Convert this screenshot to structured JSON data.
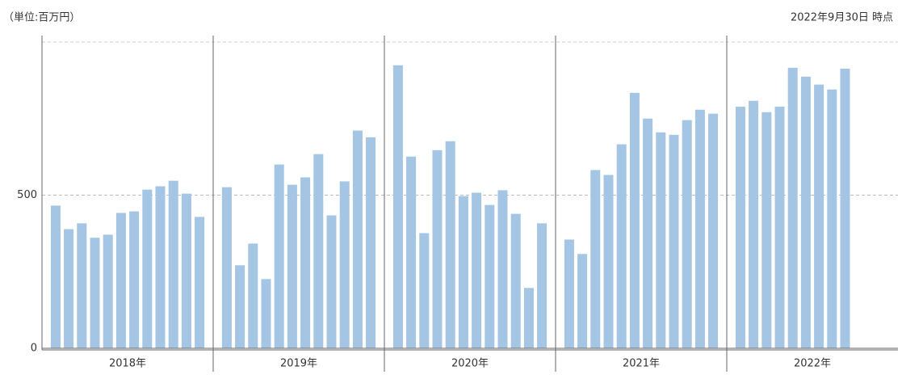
{
  "chart_data": {
    "type": "grouped-bar",
    "unit_note": "（単位:百万円）",
    "as_of": "2022年9月30日 時点",
    "color": "#a4c5e4",
    "ylim": [
      0,
      1000
    ],
    "yticks": [
      0,
      500
    ],
    "grid": true,
    "groups": [
      {
        "name": "2018年",
        "values": [
          466,
          389,
          408,
          361,
          371,
          442,
          447,
          518,
          529,
          547,
          505,
          429
        ]
      },
      {
        "name": "2019年",
        "values": [
          526,
          271,
          342,
          226,
          600,
          534,
          558,
          634,
          434,
          545,
          711,
          689
        ]
      },
      {
        "name": "2020年",
        "values": [
          924,
          626,
          376,
          647,
          676,
          497,
          508,
          468,
          516,
          439,
          197,
          408
        ]
      },
      {
        "name": "2021年",
        "values": [
          355,
          308,
          582,
          566,
          666,
          834,
          750,
          705,
          697,
          745,
          779,
          766
        ]
      },
      {
        "name": "2022年",
        "values": [
          789,
          808,
          771,
          789,
          916,
          887,
          861,
          845,
          913
        ]
      }
    ]
  }
}
